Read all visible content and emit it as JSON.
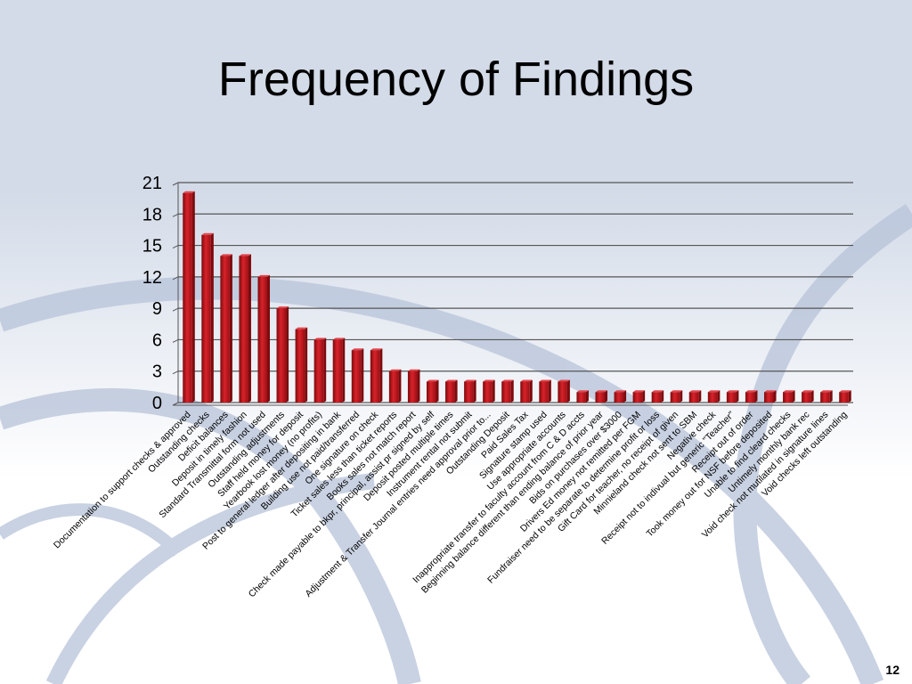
{
  "slide": {
    "title": "Frequency of Findings",
    "page_number": "12"
  },
  "colors": {
    "background_top": "#d3dbe8",
    "background_bottom": "#ffffff",
    "swirl": "#b7c3d9",
    "bar": "#c8141a",
    "bar_dark": "#7d0a0d",
    "gridline": "#555555"
  },
  "chart_data": {
    "type": "bar",
    "style": "3d",
    "title": "",
    "xlabel": "",
    "ylabel": "",
    "ylim": [
      0,
      21
    ],
    "yticks": [
      0,
      3,
      6,
      9,
      12,
      15,
      18,
      21
    ],
    "grid": true,
    "legend": "none",
    "categories": [
      "Documentation to support checks & approved",
      "Outstanding checks",
      "Deficit balances",
      "Deposit in timely fashion",
      "Standard Transmittal form not used",
      "Outstanding adjustments",
      "Staff held money for deposit",
      "Yearbook lost money (no profits)",
      "Post to general ledger after depositing in bank",
      "Building use not paid/transferred",
      "One signature on check",
      "Ticket sales less than ticket reports",
      "Books sales not match report",
      "Check made payable to bkpr, principal, assist pr signed by self",
      "Deposit posted multiple times",
      "Instrument rental not submit",
      "Adjustment & Transfer Journal entries need approval prior to...",
      "Outstanding Deposit",
      "Paid Sales Tax",
      "Signature stamp used",
      "Use appropriate accounts",
      "Inappropriate transfer to faculty account from C & D accts",
      "Beginning balance different than ending balance of prior year",
      "Bids on purchases over $3000",
      "Drivers Ed money not remitted per FGM",
      "Fundraiser need to be separate to determine profit or loss",
      "Gift Card for teacher, no receipt of given",
      "Minnieland check not sent to SBM",
      "Negative check",
      "Receipt not to indivual but generic \"Teacher\"",
      "Receipt out of order",
      "Took money out for NSF before deposited",
      "Unable to find cleard checks",
      "Untimely monthly bank rec",
      "Void check not mutilated in signature lines",
      "Void checks left outstanding"
    ],
    "values": [
      20,
      16,
      14,
      14,
      12,
      9,
      7,
      6,
      6,
      5,
      5,
      3,
      3,
      2,
      2,
      2,
      2,
      2,
      2,
      2,
      2,
      1,
      1,
      1,
      1,
      1,
      1,
      1,
      1,
      1,
      1,
      1,
      1,
      1,
      1,
      1
    ]
  }
}
